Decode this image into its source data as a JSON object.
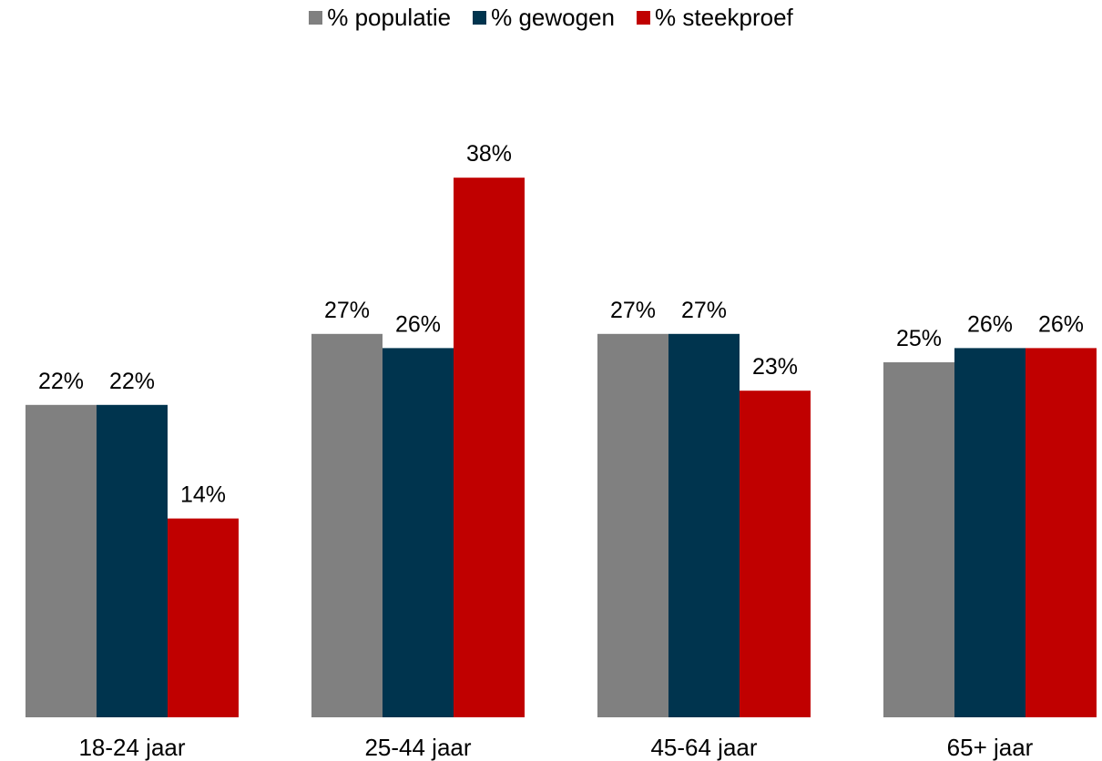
{
  "chart_data": {
    "type": "bar",
    "categories": [
      "18-24 jaar",
      "25-44 jaar",
      "45-64 jaar",
      "65+ jaar"
    ],
    "series": [
      {
        "name": "% populatie",
        "color": "#808080",
        "values": [
          22,
          27,
          27,
          25
        ]
      },
      {
        "name": "% gewogen",
        "color": "#00344e",
        "values": [
          22,
          26,
          27,
          26
        ]
      },
      {
        "name": "% steekproef",
        "color": "#c00000",
        "values": [
          14,
          38,
          23,
          26
        ]
      }
    ],
    "labels": [
      [
        "22%",
        "27%",
        "27%",
        "25%"
      ],
      [
        "22%",
        "26%",
        "27%",
        "26%"
      ],
      [
        "14%",
        "38%",
        "23%",
        "26%"
      ]
    ],
    "title": "",
    "xlabel": "",
    "ylabel": "",
    "ylim": [
      0,
      40
    ],
    "grid": false,
    "legend_position": "top"
  }
}
